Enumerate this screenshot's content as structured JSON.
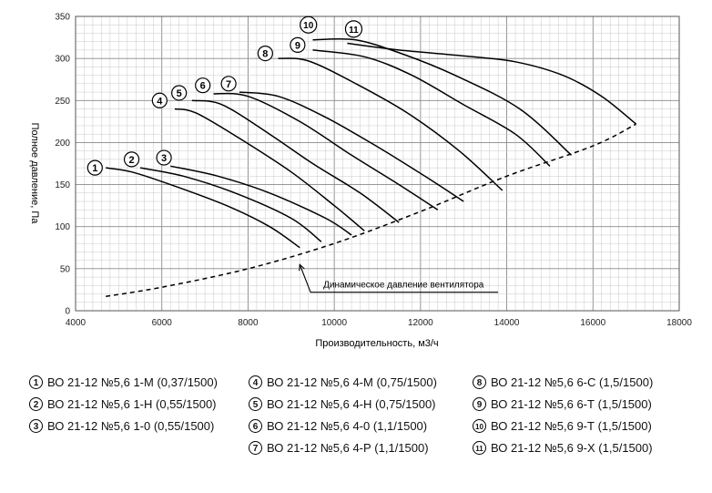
{
  "chart_data": {
    "type": "line",
    "title": "",
    "xlabel": "Производительность, м3/ч",
    "ylabel": "Полное давление, Па",
    "xlim": [
      4000,
      18000
    ],
    "ylim": [
      0,
      350
    ],
    "x_ticks": [
      4000,
      6000,
      8000,
      10000,
      12000,
      14000,
      16000,
      18000
    ],
    "y_ticks": [
      0,
      50,
      100,
      150,
      200,
      250,
      300,
      350
    ],
    "x_minor_step": 200,
    "y_minor_step": 10,
    "grid": true,
    "series": [
      {
        "name": "1",
        "points": [
          [
            4700,
            170
          ],
          [
            5300,
            165
          ],
          [
            6200,
            150
          ],
          [
            7500,
            125
          ],
          [
            8500,
            100
          ],
          [
            9200,
            75
          ]
        ]
      },
      {
        "name": "2",
        "points": [
          [
            5500,
            170
          ],
          [
            6500,
            160
          ],
          [
            7700,
            140
          ],
          [
            9000,
            110
          ],
          [
            9700,
            82
          ]
        ]
      },
      {
        "name": "3",
        "points": [
          [
            6200,
            172
          ],
          [
            7300,
            160
          ],
          [
            8500,
            140
          ],
          [
            9800,
            110
          ],
          [
            10400,
            90
          ]
        ]
      },
      {
        "name": "4",
        "points": [
          [
            6300,
            240
          ],
          [
            6800,
            235
          ],
          [
            7800,
            205
          ],
          [
            9000,
            165
          ],
          [
            10000,
            125
          ],
          [
            10700,
            95
          ]
        ]
      },
      {
        "name": "5",
        "points": [
          [
            6700,
            250
          ],
          [
            7400,
            245
          ],
          [
            8500,
            210
          ],
          [
            9500,
            175
          ],
          [
            10600,
            140
          ],
          [
            11500,
            105
          ]
        ]
      },
      {
        "name": "6",
        "points": [
          [
            7200,
            258
          ],
          [
            8000,
            255
          ],
          [
            9200,
            225
          ],
          [
            10400,
            185
          ],
          [
            11500,
            150
          ],
          [
            12400,
            120
          ]
        ]
      },
      {
        "name": "7",
        "points": [
          [
            7800,
            260
          ],
          [
            8700,
            255
          ],
          [
            9800,
            230
          ],
          [
            11000,
            195
          ],
          [
            12100,
            160
          ],
          [
            13000,
            130
          ]
        ]
      },
      {
        "name": "8",
        "points": [
          [
            8700,
            300
          ],
          [
            9400,
            297
          ],
          [
            10500,
            270
          ],
          [
            11700,
            235
          ],
          [
            12900,
            190
          ],
          [
            13900,
            143
          ]
        ]
      },
      {
        "name": "9",
        "points": [
          [
            9500,
            310
          ],
          [
            10700,
            302
          ],
          [
            11800,
            280
          ],
          [
            13000,
            245
          ],
          [
            14200,
            210
          ],
          [
            15000,
            172
          ]
        ]
      },
      {
        "name": "10",
        "points": [
          [
            9500,
            322
          ],
          [
            10500,
            322
          ],
          [
            11600,
            305
          ],
          [
            12800,
            280
          ],
          [
            14300,
            240
          ],
          [
            15500,
            185
          ]
        ]
      },
      {
        "name": "11",
        "points": [
          [
            10300,
            318
          ],
          [
            11500,
            310
          ],
          [
            13000,
            303
          ],
          [
            14200,
            296
          ],
          [
            15300,
            280
          ],
          [
            16200,
            255
          ],
          [
            17000,
            222
          ]
        ]
      }
    ],
    "dynamic_pressure": {
      "name": "Динамическое давление вентилятора",
      "points": [
        [
          4700,
          17
        ],
        [
          6000,
          28
        ],
        [
          8000,
          50
        ],
        [
          10000,
          80
        ],
        [
          12000,
          118
        ],
        [
          14000,
          160
        ],
        [
          16000,
          196
        ],
        [
          17000,
          222
        ]
      ]
    },
    "curve_labels": [
      {
        "text": "1",
        "x": 4450,
        "y": 170
      },
      {
        "text": "2",
        "x": 5300,
        "y": 180
      },
      {
        "text": "3",
        "x": 6050,
        "y": 182
      },
      {
        "text": "4",
        "x": 5950,
        "y": 250
      },
      {
        "text": "5",
        "x": 6400,
        "y": 259
      },
      {
        "text": "6",
        "x": 6950,
        "y": 268
      },
      {
        "text": "7",
        "x": 7550,
        "y": 270
      },
      {
        "text": "8",
        "x": 8400,
        "y": 306
      },
      {
        "text": "9",
        "x": 9150,
        "y": 316
      },
      {
        "text": "10",
        "x": 9400,
        "y": 340
      },
      {
        "text": "11",
        "x": 10450,
        "y": 335
      }
    ],
    "annotation": {
      "text": "Динамическое давление вентилятора",
      "arrow_tip": [
        9200,
        55
      ],
      "elbow": [
        9450,
        22
      ],
      "line_end": [
        13800,
        22
      ]
    }
  },
  "legend": [
    {
      "num": "1",
      "text": "ВО 21-12 №5,6 1-М (0,37/1500)"
    },
    {
      "num": "2",
      "text": "ВО 21-12 №5,6 1-Н (0,55/1500)"
    },
    {
      "num": "3",
      "text": "ВО 21-12 №5,6 1-0 (0,55/1500)"
    },
    {
      "num": "4",
      "text": "ВО 21-12 №5,6 4-М (0,75/1500)"
    },
    {
      "num": "5",
      "text": "ВО 21-12 №5,6 4-Н (0,75/1500)"
    },
    {
      "num": "6",
      "text": "ВО 21-12 №5,6 4-0 (1,1/1500)"
    },
    {
      "num": "7",
      "text": "ВО 21-12 №5,6 4-Р (1,1/1500)"
    },
    {
      "num": "8",
      "text": "ВО 21-12 №5,6 6-С (1,5/1500)"
    },
    {
      "num": "9",
      "text": "ВО 21-12 №5,6 6-Т (1,5/1500)"
    },
    {
      "num": "10",
      "text": "ВО 21-12 №5,6 9-Т (1,5/1500)"
    },
    {
      "num": "11",
      "text": "ВО 21-12 №5,6 9-Х (1,5/1500)"
    }
  ]
}
